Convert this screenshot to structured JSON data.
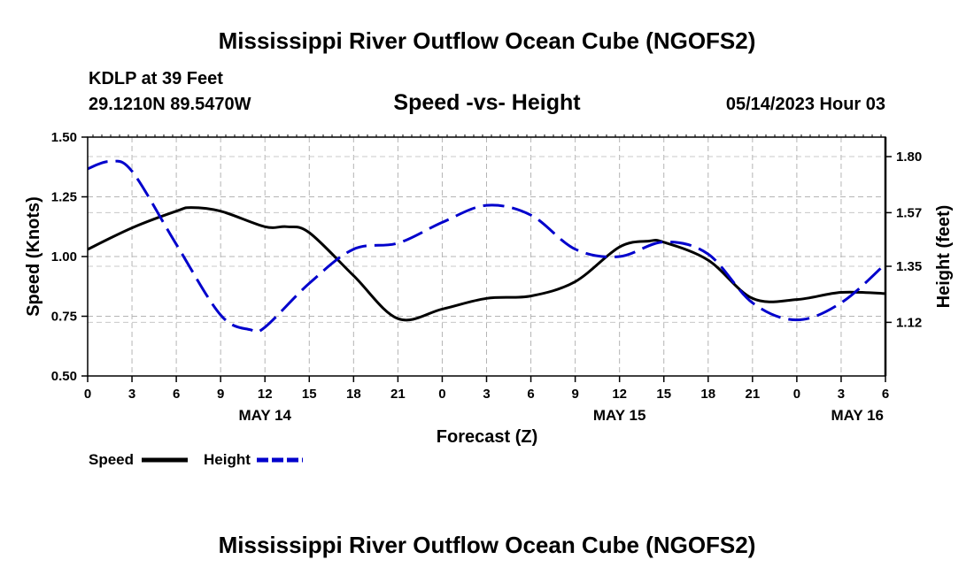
{
  "header": {
    "title": "Mississippi River Outflow Ocean Cube (NGOFS2)",
    "station": "KDLP at 39 Feet",
    "location": "29.1210N  89.5470W",
    "subtitle": "Speed -vs- Height",
    "datetime": "05/14/2023 Hour 03"
  },
  "footer": {
    "title": "Mississippi River Outflow Ocean Cube (NGOFS2)"
  },
  "chart_data": {
    "type": "line",
    "title": "Speed -vs- Height",
    "xlabel": "Forecast (Z)",
    "ylabel_left": "Speed (Knots)",
    "ylabel_right": "Height (feet)",
    "xlim": [
      0,
      54
    ],
    "ylim_left": [
      0.5,
      1.5
    ],
    "ylim_right": [
      0.9,
      1.88
    ],
    "x_ticks": [
      0,
      3,
      6,
      9,
      12,
      15,
      18,
      21,
      24,
      27,
      30,
      33,
      36,
      39,
      42,
      45,
      48,
      51,
      54
    ],
    "x_tick_labels": [
      "0",
      "3",
      "6",
      "9",
      "12",
      "15",
      "18",
      "21",
      "0",
      "3",
      "6",
      "9",
      "12",
      "15",
      "18",
      "21",
      "0",
      "3",
      "6"
    ],
    "y_left_ticks": [
      0.5,
      0.75,
      1.0,
      1.25,
      1.5
    ],
    "y_left_tick_labels": [
      "0.50",
      "0.75",
      "1.00",
      "1.25",
      "1.50"
    ],
    "y_right_ticks": [
      1.12,
      1.35,
      1.57,
      1.8
    ],
    "y_right_tick_labels": [
      "1.12",
      "1.35",
      "1.57",
      "1.80"
    ],
    "day_labels": [
      {
        "x": 12,
        "label": "MAY 14"
      },
      {
        "x": 36,
        "label": "MAY 15"
      },
      {
        "x": 54,
        "label": "MAY 16"
      }
    ],
    "grid": true,
    "legend_position": "bottom-left",
    "series": [
      {
        "name": "Speed",
        "axis": "left",
        "color": "#000000",
        "dash": "solid",
        "x": [
          0,
          3,
          6,
          7,
          9,
          12,
          13.5,
          15,
          18,
          21,
          24,
          27,
          30,
          33,
          36,
          38,
          39,
          42,
          45,
          48,
          51,
          54
        ],
        "values": [
          1.03,
          1.12,
          1.19,
          1.205,
          1.19,
          1.125,
          1.125,
          1.1,
          0.92,
          0.74,
          0.78,
          0.825,
          0.835,
          0.895,
          1.04,
          1.065,
          1.06,
          0.985,
          0.825,
          0.82,
          0.85,
          0.845
        ]
      },
      {
        "name": "Height",
        "axis": "right",
        "color": "#0000cc",
        "dash": "dashed",
        "x": [
          0,
          1.5,
          3,
          6,
          9,
          11,
          12,
          15,
          18,
          21,
          24,
          27,
          30,
          33,
          36,
          39,
          42,
          45,
          48,
          51,
          54
        ],
        "values": [
          1.75,
          1.78,
          1.74,
          1.44,
          1.15,
          1.09,
          1.1,
          1.28,
          1.42,
          1.445,
          1.53,
          1.6,
          1.56,
          1.42,
          1.39,
          1.45,
          1.4,
          1.2,
          1.13,
          1.2,
          1.36
        ]
      }
    ]
  }
}
